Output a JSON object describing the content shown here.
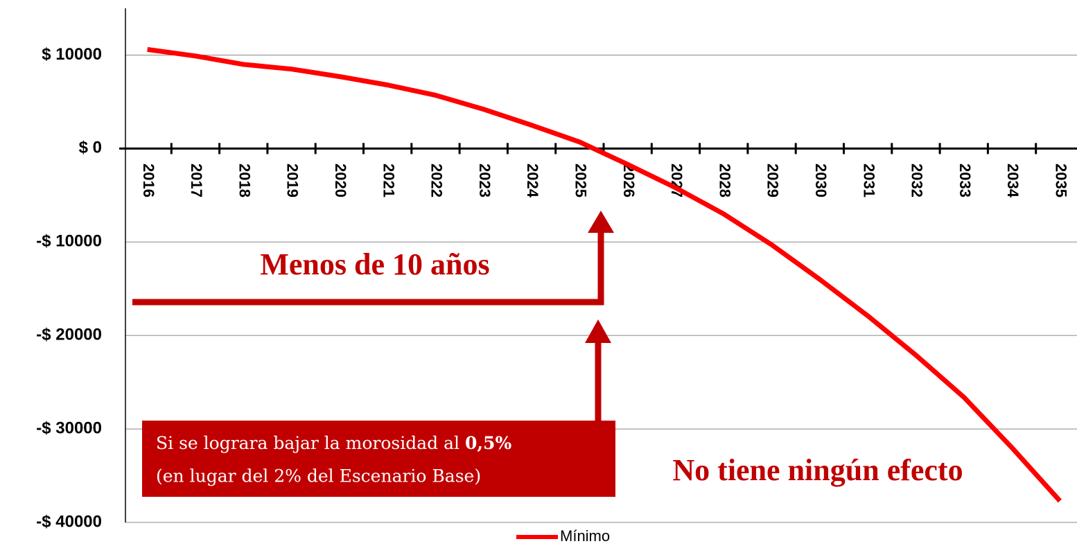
{
  "chart_data": {
    "type": "line",
    "categories": [
      "2016",
      "2017",
      "2018",
      "2019",
      "2020",
      "2021",
      "2022",
      "2023",
      "2024",
      "2025",
      "2026",
      "2027",
      "2028",
      "2029",
      "2030",
      "2031",
      "2032",
      "2033",
      "2034",
      "2035"
    ],
    "series": [
      {
        "name": "Mínimo",
        "color": "#ff0000",
        "values": [
          10600,
          9900,
          9000,
          8500,
          7700,
          6800,
          5700,
          4200,
          2500,
          700,
          -1700,
          -4200,
          -7000,
          -10300,
          -14000,
          -17900,
          -22100,
          -26600,
          -32000,
          -37700
        ]
      }
    ],
    "ylim": [
      -40000,
      15000
    ],
    "yticks": [
      {
        "value": -40000,
        "label": "-$ 40000"
      },
      {
        "value": -30000,
        "label": "-$ 30000"
      },
      {
        "value": -20000,
        "label": "-$ 20000"
      },
      {
        "value": -10000,
        "label": "-$ 10000"
      },
      {
        "value": 0,
        "label": "$ 0"
      },
      {
        "value": 10000,
        "label": "$ 10000"
      }
    ],
    "grid": true,
    "legend": "bottom",
    "annotations": {
      "headline": "Menos de 10 años",
      "note_line1": "Si se lograra bajar la morosidad al ",
      "note_bold": "0,5%",
      "note_line2": "(en lugar del 2% del Escenario Base)",
      "conclusion": "No tiene ningún efecto"
    }
  }
}
